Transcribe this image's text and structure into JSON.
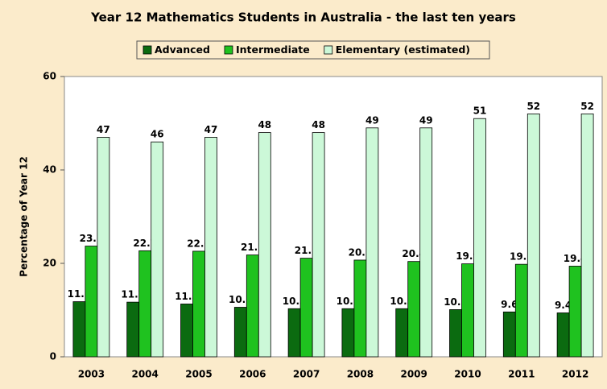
{
  "chart_data": {
    "type": "bar",
    "title": "Year 12 Mathematics Students in Australia - the last ten years",
    "y_label": "Percentage of Year 12",
    "categories": [
      "2003",
      "2004",
      "2005",
      "2006",
      "2007",
      "2008",
      "2009",
      "2010",
      "2011",
      "2012"
    ],
    "series": [
      {
        "name": "Advanced",
        "color": "#0b6b10",
        "values": [
          11.8,
          11.7,
          11.3,
          10.6,
          10.3,
          10.3,
          10.3,
          10.1,
          9.6,
          9.4
        ]
      },
      {
        "name": "Intermediate",
        "color": "#1fc21f",
        "values": [
          23.7,
          22.7,
          22.6,
          21.8,
          21.1,
          20.7,
          20.4,
          19.9,
          19.8,
          19.4
        ]
      },
      {
        "name": "Elementary (estimated)",
        "color": "#ccf8d8",
        "values": [
          47,
          46,
          47,
          48,
          48,
          49,
          49,
          51,
          52,
          52
        ]
      }
    ],
    "ylim": [
      0,
      60
    ],
    "yticks": [
      0,
      20,
      40,
      60
    ],
    "grid": false
  }
}
